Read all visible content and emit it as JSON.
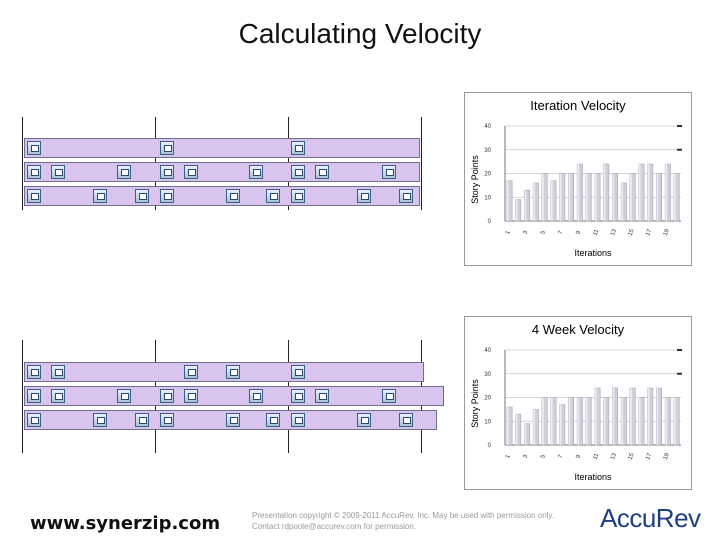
{
  "slide": {
    "title": "Calculating Velocity",
    "footer_url": "www.synerzip.com",
    "copyright": "Presentation copyright © 2009-2011 AccuRev, Inc. May be used with permission only. Contact rdpoole@accurev.com for permission.",
    "logo_text": "AccuRev"
  },
  "colors": {
    "band_fill": "#d9c3ef",
    "bar_fill": "#cfd0dc",
    "card_blue": "#3b5d86",
    "logo_blue": "#1e3f86"
  },
  "chart_data": [
    {
      "type": "bar",
      "title": "Iteration Velocity",
      "xlabel": "Iterations",
      "ylabel": "Story Points",
      "ylim": [
        0,
        40
      ],
      "yticks": [
        0,
        10,
        20,
        30,
        40
      ],
      "xtick_labels": [
        "1",
        "3",
        "5",
        "7",
        "9",
        "11",
        "13",
        "15",
        "17",
        "19"
      ],
      "categories": [
        "1",
        "2",
        "3",
        "4",
        "5",
        "6",
        "7",
        "8",
        "9",
        "10",
        "11",
        "12",
        "13",
        "14",
        "15",
        "16",
        "17",
        "18",
        "19",
        "20"
      ],
      "values": [
        17,
        9,
        13,
        16,
        20,
        17,
        20,
        20,
        24,
        20,
        20,
        24,
        20,
        16,
        20,
        24,
        24,
        20,
        24,
        20
      ],
      "grid": true
    },
    {
      "type": "bar",
      "title": "4 Week Velocity",
      "xlabel": "Iterations",
      "ylabel": "Story Points",
      "ylim": [
        0,
        40
      ],
      "yticks": [
        0,
        10,
        20,
        30,
        40
      ],
      "xtick_labels": [
        "1",
        "3",
        "5",
        "7",
        "9",
        "11",
        "13",
        "15",
        "17",
        "19"
      ],
      "categories": [
        "1",
        "2",
        "3",
        "4",
        "5",
        "6",
        "7",
        "8",
        "9",
        "10",
        "11",
        "12",
        "13",
        "14",
        "15",
        "16",
        "17",
        "18",
        "19",
        "20"
      ],
      "values": [
        16,
        13,
        9,
        15,
        20,
        20,
        17,
        20,
        20,
        20,
        24,
        20,
        24,
        20,
        24,
        20,
        24,
        24,
        20,
        20
      ],
      "grid": true
    }
  ]
}
